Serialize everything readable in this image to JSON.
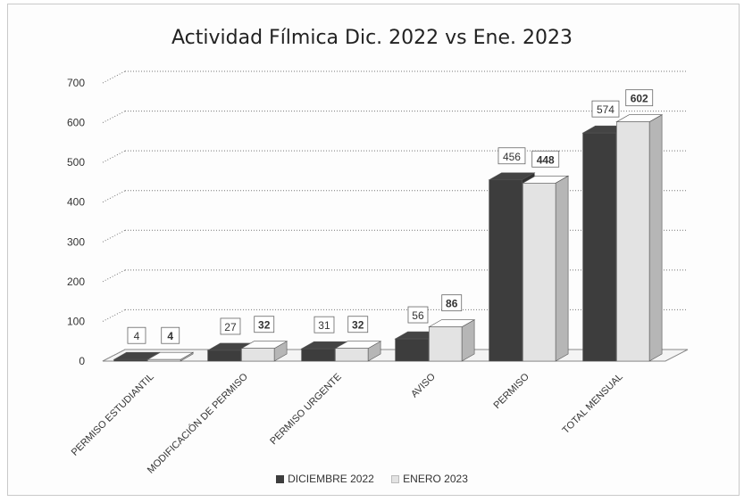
{
  "chart_data": {
    "type": "bar",
    "title": "Actividad Fílmica Dic. 2022 vs Ene. 2023",
    "categories": [
      "PERMISO ESTUDIANTIL",
      "MODIFICACIÓN DE PERMISO",
      "PERMISO URGENTE",
      "AVISO",
      "PERMISO",
      "TOTAL MENSUAL"
    ],
    "series": [
      {
        "name": "DICIEMBRE 2022",
        "values": [
          4,
          27,
          31,
          56,
          456,
          574
        ],
        "color": "#3d3d3d"
      },
      {
        "name": "ENERO 2023",
        "values": [
          4,
          32,
          32,
          86,
          448,
          602
        ],
        "color": "#e3e3e3"
      }
    ],
    "y_ticks": [
      "0",
      "100",
      "200",
      "300",
      "400",
      "500",
      "600",
      "700"
    ],
    "ylim": [
      0,
      700
    ],
    "grid": true,
    "legend_position": "bottom",
    "style": "3d-clustered-column"
  }
}
